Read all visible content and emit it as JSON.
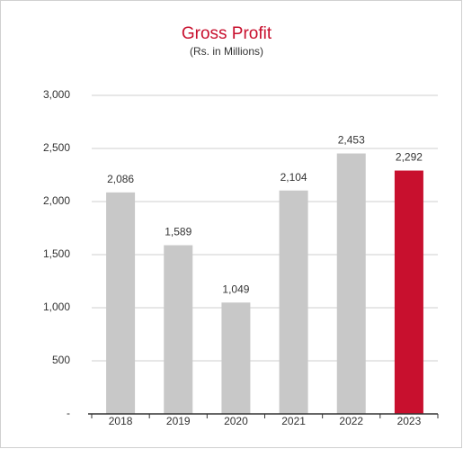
{
  "chart_data": {
    "type": "bar",
    "title": "Gross Profit",
    "subtitle": "(Rs. in Millions)",
    "categories": [
      "2018",
      "2019",
      "2020",
      "2021",
      "2022",
      "2023"
    ],
    "values": [
      2086,
      1589,
      1049,
      2104,
      2453,
      2292
    ],
    "value_labels": [
      "2,086",
      "1,589",
      "1,049",
      "2,104",
      "2,453",
      "2,292"
    ],
    "colors": [
      "#c8c8c8",
      "#c8c8c8",
      "#c8c8c8",
      "#c8c8c8",
      "#c8c8c8",
      "#c8102e"
    ],
    "ylim": [
      0,
      3000
    ],
    "yticks": [
      {
        "value": 0,
        "label": "-"
      },
      500,
      {
        "value": 1000,
        "label": "1,000"
      },
      {
        "value": 1500,
        "label": "1,500"
      },
      {
        "value": 2000,
        "label": "2,000"
      },
      {
        "value": 2500,
        "label": "2,500"
      },
      {
        "value": 3000,
        "label": "3,000"
      }
    ],
    "grid": true
  }
}
